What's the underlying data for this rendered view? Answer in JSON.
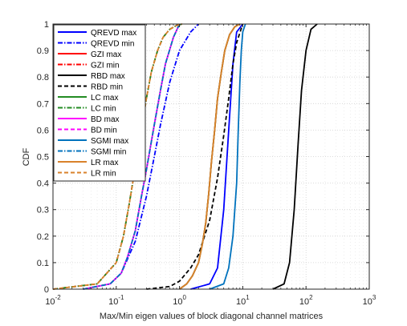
{
  "chart_data": {
    "type": "line",
    "title": "",
    "xlabel": "Max/Min eigen values of block diagonal channel matrices",
    "ylabel": "CDF",
    "xscale": "log",
    "xlim": [
      0.01,
      1000
    ],
    "ylim": [
      0,
      1
    ],
    "grid": true,
    "legend_position": "top-left",
    "x_ticks": [
      {
        "value": 0.01,
        "base": "10",
        "exp": "-2"
      },
      {
        "value": 0.1,
        "base": "10",
        "exp": "-1"
      },
      {
        "value": 1,
        "base": "10",
        "exp": "0"
      },
      {
        "value": 10,
        "base": "10",
        "exp": "1"
      },
      {
        "value": 100,
        "base": "10",
        "exp": "2"
      },
      {
        "value": 1000,
        "base": "10",
        "exp": "3"
      }
    ],
    "y_ticks": [
      "0",
      "0.1",
      "0.2",
      "0.3",
      "0.4",
      "0.5",
      "0.6",
      "0.7",
      "0.8",
      "0.9",
      "1"
    ],
    "series": [
      {
        "name": "QREVD max",
        "color": "#0000ff",
        "dash": "solid",
        "x": [
          1.5,
          3.0,
          4.0,
          5.0,
          6.0,
          7.0,
          8.0,
          10.0
        ],
        "y": [
          0,
          0.02,
          0.08,
          0.3,
          0.6,
          0.85,
          0.97,
          1
        ]
      },
      {
        "name": "QREVD min",
        "color": "#0000ff",
        "dash": "dashdot",
        "x": [
          0.03,
          0.08,
          0.12,
          0.2,
          0.3,
          0.4,
          0.5,
          0.7,
          1.0,
          1.5,
          2.0
        ],
        "y": [
          0,
          0.02,
          0.06,
          0.18,
          0.35,
          0.5,
          0.62,
          0.78,
          0.9,
          0.97,
          1
        ]
      },
      {
        "name": "GZI max",
        "color": "#ff0000",
        "dash": "solid",
        "x": [
          1.0,
          1.3,
          1.6,
          2.0,
          2.3,
          2.6,
          2.9,
          3.2,
          3.6,
          4.0,
          4.6,
          5.2,
          6.2,
          7.5,
          9.0
        ],
        "y": [
          0,
          0.02,
          0.05,
          0.1,
          0.17,
          0.25,
          0.36,
          0.48,
          0.6,
          0.72,
          0.82,
          0.9,
          0.96,
          0.99,
          1
        ]
      },
      {
        "name": "GZI min",
        "color": "#ff0000",
        "dash": "dashdot",
        "x": [
          0.01,
          0.05,
          0.1,
          0.13,
          0.16,
          0.2,
          0.24,
          0.3,
          0.36,
          0.45,
          0.55,
          0.7,
          0.9,
          1.1
        ],
        "y": [
          0,
          0.02,
          0.1,
          0.2,
          0.32,
          0.46,
          0.58,
          0.72,
          0.82,
          0.9,
          0.95,
          0.98,
          0.995,
          1
        ]
      },
      {
        "name": "RBD max",
        "color": "#000000",
        "dash": "solid",
        "x": [
          30,
          45,
          55,
          65,
          75,
          85,
          100,
          120,
          150
        ],
        "y": [
          0,
          0.02,
          0.1,
          0.3,
          0.55,
          0.75,
          0.9,
          0.98,
          1
        ]
      },
      {
        "name": "RBD min",
        "color": "#000000",
        "dash": "dashed",
        "x": [
          0.3,
          0.7,
          1.0,
          1.5,
          2.0,
          3.0,
          4.0,
          5.0,
          6.0,
          7.0,
          8.0,
          10.0
        ],
        "y": [
          0,
          0.01,
          0.03,
          0.08,
          0.13,
          0.26,
          0.42,
          0.58,
          0.72,
          0.85,
          0.93,
          1
        ]
      },
      {
        "name": "LC max",
        "color": "#228b22",
        "dash": "solid",
        "x": [
          1.0,
          1.3,
          1.6,
          2.0,
          2.3,
          2.6,
          2.9,
          3.2,
          3.6,
          4.0,
          4.6,
          5.2,
          6.2,
          7.5,
          9.0
        ],
        "y": [
          0,
          0.02,
          0.05,
          0.1,
          0.17,
          0.25,
          0.36,
          0.48,
          0.6,
          0.72,
          0.82,
          0.9,
          0.96,
          0.99,
          1
        ]
      },
      {
        "name": "LC min",
        "color": "#228b22",
        "dash": "dashdot",
        "x": [
          0.01,
          0.05,
          0.1,
          0.13,
          0.16,
          0.2,
          0.24,
          0.3,
          0.36,
          0.45,
          0.55,
          0.7,
          0.9,
          1.1
        ],
        "y": [
          0,
          0.02,
          0.1,
          0.2,
          0.32,
          0.46,
          0.58,
          0.72,
          0.82,
          0.9,
          0.95,
          0.98,
          0.995,
          1
        ]
      },
      {
        "name": "BD max",
        "color": "#ff00ff",
        "dash": "solid",
        "x": [
          0.03,
          0.08,
          0.12,
          0.15,
          0.2,
          0.25,
          0.3,
          0.4,
          0.5,
          0.6,
          0.8,
          1.0
        ],
        "y": [
          0,
          0.02,
          0.06,
          0.12,
          0.22,
          0.35,
          0.45,
          0.62,
          0.75,
          0.85,
          0.95,
          1
        ]
      },
      {
        "name": "BD min",
        "color": "#ff00ff",
        "dash": "dashed",
        "x": [
          0.03,
          0.08,
          0.12,
          0.15,
          0.2,
          0.25,
          0.3,
          0.4,
          0.5,
          0.6,
          0.8,
          1.0
        ],
        "y": [
          0,
          0.02,
          0.06,
          0.12,
          0.22,
          0.35,
          0.45,
          0.62,
          0.75,
          0.85,
          0.95,
          1
        ]
      },
      {
        "name": "SGMI max",
        "color": "#0072bd",
        "dash": "solid",
        "x": [
          3.0,
          5.0,
          6.0,
          7.0,
          8.0,
          8.5,
          9.0,
          9.5,
          10.0,
          11.0
        ],
        "y": [
          0,
          0.02,
          0.08,
          0.2,
          0.4,
          0.6,
          0.78,
          0.9,
          0.97,
          1
        ]
      },
      {
        "name": "SGMI min",
        "color": "#0072bd",
        "dash": "dashdot",
        "x": [
          0.03,
          0.08,
          0.12,
          0.15,
          0.2,
          0.25,
          0.3,
          0.4,
          0.5,
          0.6,
          0.8,
          1.0
        ],
        "y": [
          0,
          0.02,
          0.06,
          0.12,
          0.22,
          0.35,
          0.45,
          0.62,
          0.75,
          0.85,
          0.95,
          1
        ]
      },
      {
        "name": "LR max",
        "color": "#d9822b",
        "dash": "solid",
        "x": [
          1.0,
          1.3,
          1.6,
          2.0,
          2.3,
          2.6,
          2.9,
          3.2,
          3.6,
          4.0,
          4.6,
          5.2,
          6.2,
          7.5,
          9.0
        ],
        "y": [
          0,
          0.02,
          0.05,
          0.1,
          0.17,
          0.25,
          0.36,
          0.48,
          0.6,
          0.72,
          0.82,
          0.9,
          0.96,
          0.99,
          1
        ]
      },
      {
        "name": "LR min",
        "color": "#d9822b",
        "dash": "dashed",
        "x": [
          0.01,
          0.05,
          0.1,
          0.13,
          0.16,
          0.2,
          0.24,
          0.3,
          0.36,
          0.45,
          0.55,
          0.7,
          0.9,
          1.1
        ],
        "y": [
          0,
          0.02,
          0.1,
          0.2,
          0.32,
          0.46,
          0.58,
          0.72,
          0.82,
          0.9,
          0.95,
          0.98,
          0.995,
          1
        ]
      }
    ]
  }
}
